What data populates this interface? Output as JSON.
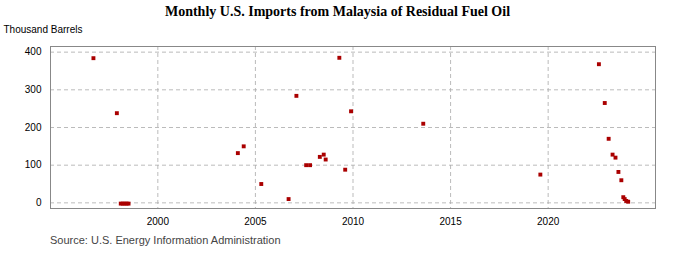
{
  "chart_data": {
    "type": "scatter",
    "title": "Monthly U.S. Imports from Malaysia of Residual Fuel Oil",
    "ylabel": "Thousand Barrels",
    "source": "Source: U.S. Energy Information Administration",
    "color": "#aa0000",
    "marker": "square",
    "grid": true,
    "xlim": [
      1994.5,
      2025.5
    ],
    "ylim": [
      -15,
      415
    ],
    "xticks": [
      2000,
      2005,
      2010,
      2015,
      2020
    ],
    "yticks": [
      0,
      100,
      200,
      300,
      400
    ],
    "x": [
      1996.7,
      1997.9,
      1998.1,
      1998.2,
      1998.3,
      1998.4,
      1998.5,
      2004.1,
      2004.4,
      2005.3,
      2006.7,
      2007.1,
      2007.6,
      2007.8,
      2008.3,
      2008.5,
      2008.6,
      2009.3,
      2009.6,
      2009.9,
      2013.6,
      2019.6,
      2022.6,
      2022.9,
      2023.1,
      2023.3,
      2023.45,
      2023.6,
      2023.75,
      2023.85,
      2023.92,
      2024.0,
      2024.1
    ],
    "values": [
      384,
      238,
      -2,
      -2,
      -2,
      -2,
      -2,
      132,
      150,
      50,
      10,
      284,
      100,
      100,
      122,
      128,
      115,
      385,
      88,
      243,
      210,
      75,
      368,
      265,
      170,
      128,
      120,
      82,
      60,
      15,
      10,
      5,
      3
    ]
  }
}
